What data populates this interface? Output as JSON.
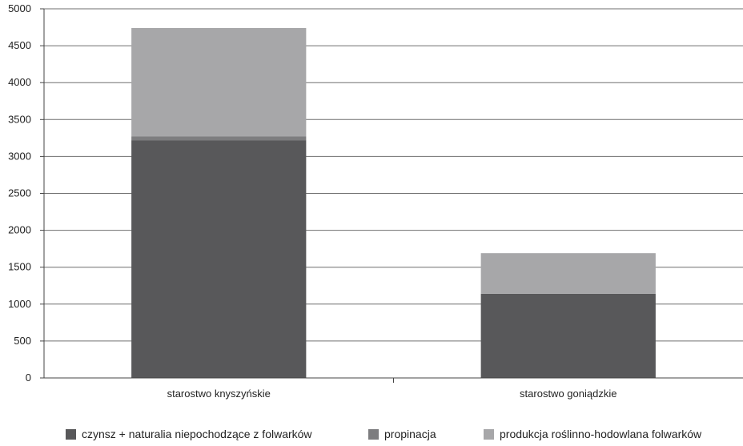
{
  "chart_data": {
    "type": "bar",
    "stacked": true,
    "categories": [
      "starostwo knyszyńskie",
      "starostwo goniądzkie"
    ],
    "series": [
      {
        "name": "czynsz + naturalia niepochodzące z folwarków",
        "color": "#58585a",
        "values": [
          3220,
          1140
        ]
      },
      {
        "name": "propinacja",
        "color": "#7d7d7f",
        "values": [
          50,
          0
        ]
      },
      {
        "name": "produkcja roślinno-hodowlana folwarków",
        "color": "#a7a7a9",
        "values": [
          1470,
          550
        ]
      }
    ],
    "ylim": [
      0,
      5000
    ],
    "yticks": [
      "0",
      "500",
      "1000",
      "1500",
      "2000",
      "2500",
      "3000",
      "3500",
      "4000",
      "4500",
      "5000"
    ],
    "grid": true,
    "legend_position": "bottom",
    "title": "",
    "xlabel": "",
    "ylabel": ""
  }
}
